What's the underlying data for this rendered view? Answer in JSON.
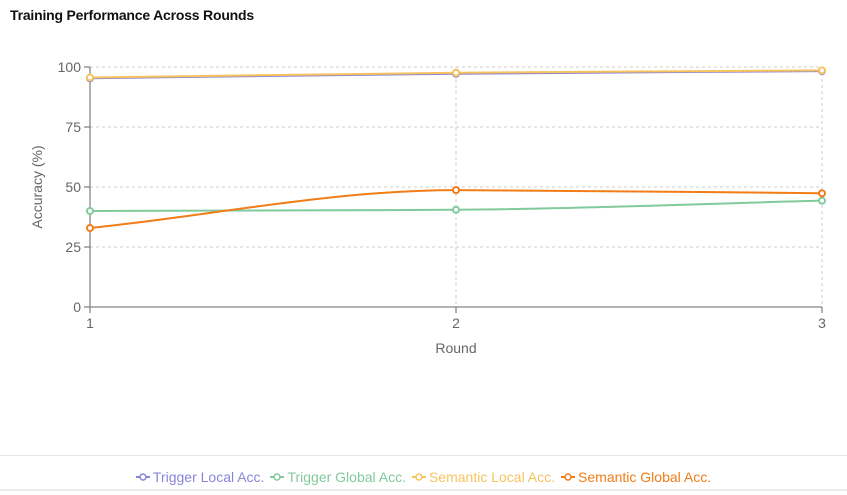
{
  "title": "Training Performance Across Rounds",
  "chart_data": {
    "type": "line",
    "title": "Training Performance Across Rounds",
    "xlabel": "Round",
    "ylabel": "Accuracy (%)",
    "x": [
      1,
      2,
      3
    ],
    "xlim": [
      1,
      3
    ],
    "ylim": [
      0,
      100
    ],
    "y_ticks": [
      0,
      25,
      50,
      75,
      100
    ],
    "grid": true,
    "legend_position": "bottom",
    "series": [
      {
        "name": "Trigger Local Acc.",
        "color": "#8884d8",
        "values": [
          95.3,
          97.2,
          98.3
        ]
      },
      {
        "name": "Trigger Global Acc.",
        "color": "#82ca9d",
        "values": [
          40,
          40.5,
          44.3
        ]
      },
      {
        "name": "Semantic Local Acc.",
        "color": "#f7c35f",
        "values": [
          95.6,
          97.6,
          98.6
        ]
      },
      {
        "name": "Semantic Global Acc.",
        "color": "#f27c17",
        "values": [
          32.9,
          48.7,
          47.4
        ]
      }
    ]
  }
}
